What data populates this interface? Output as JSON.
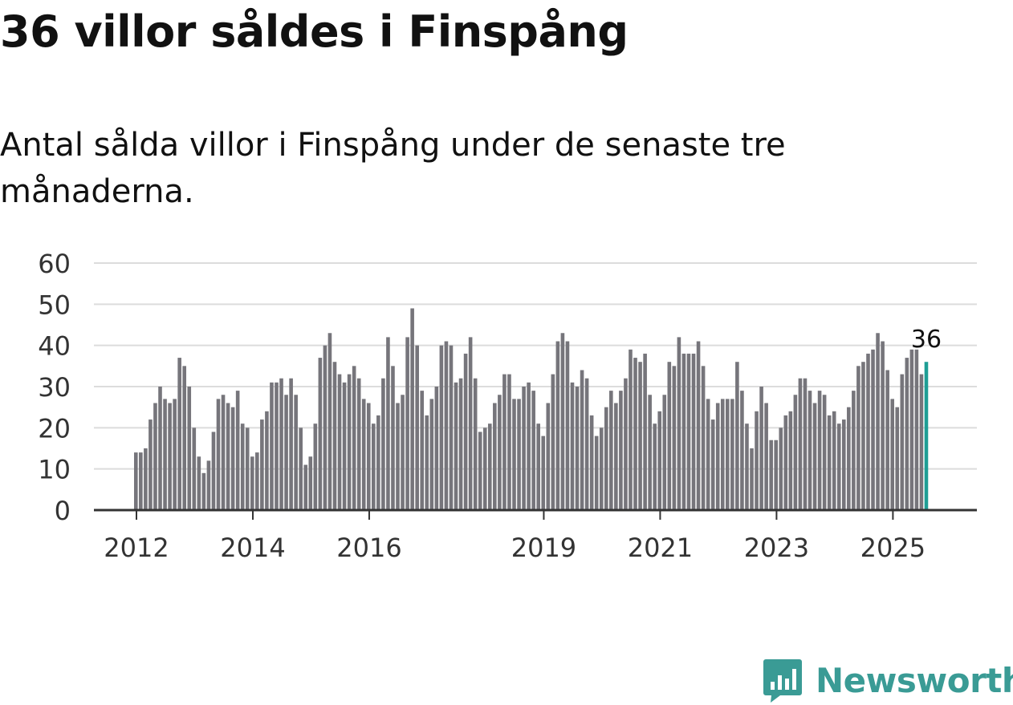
{
  "title": "36 villor såldes i Finspång",
  "subtitle": "Antal sålda villor i Finspång under de senaste tre månaderna.",
  "brand": {
    "name": "Newsworthy",
    "icon": "newsworthy-logo-icon",
    "color": "#3a9b95"
  },
  "chart_data": {
    "type": "bar",
    "title": "36 villor såldes i Finspång",
    "subtitle": "Antal sålda villor i Finspång under de senaste tre månaderna.",
    "xlabel": "",
    "ylabel": "",
    "ylim": [
      0,
      60
    ],
    "yticks": [
      0,
      10,
      20,
      30,
      40,
      50,
      60
    ],
    "xticks": [
      "2012",
      "2014",
      "2016",
      "2019",
      "2021",
      "2023",
      "2025"
    ],
    "grid": true,
    "bar_color": "#76757b",
    "highlight_color": "#1f9e95",
    "annotation": {
      "label": "36",
      "target": "last bar"
    },
    "series": [
      {
        "values": [
          14,
          14,
          15,
          22,
          26,
          30,
          27,
          26,
          27,
          37,
          35,
          30,
          20,
          13,
          9,
          12,
          19,
          27,
          28,
          26,
          25,
          29,
          21,
          20,
          13,
          14,
          22,
          24,
          31,
          31,
          32,
          28,
          32,
          28,
          20,
          11,
          13,
          21,
          37,
          40,
          43,
          36,
          33,
          31,
          33,
          35,
          32,
          27,
          26,
          21,
          23,
          32,
          42,
          35,
          26,
          28,
          42,
          49,
          40,
          29,
          23,
          27,
          30,
          40,
          41,
          40,
          31,
          32,
          38,
          42,
          32,
          19,
          20,
          21,
          26,
          28,
          33,
          33,
          27,
          27,
          30,
          31,
          29,
          21,
          18,
          26,
          33,
          41,
          43,
          41,
          31,
          30,
          34,
          32,
          23,
          18,
          20,
          25,
          29,
          26,
          29,
          32,
          39,
          37,
          36,
          38,
          28,
          21,
          24,
          28,
          36,
          35,
          42,
          38,
          38,
          38,
          41,
          35,
          27,
          22,
          26,
          27,
          27,
          27,
          36,
          29,
          21,
          15,
          24,
          30,
          26,
          17,
          17,
          20,
          23,
          24,
          28,
          32,
          32,
          29,
          26,
          29,
          28,
          23,
          24,
          21,
          22,
          25,
          29,
          35,
          36,
          38,
          39,
          43,
          41,
          34,
          27,
          25,
          33,
          37,
          39,
          39,
          33,
          36
        ]
      }
    ]
  }
}
